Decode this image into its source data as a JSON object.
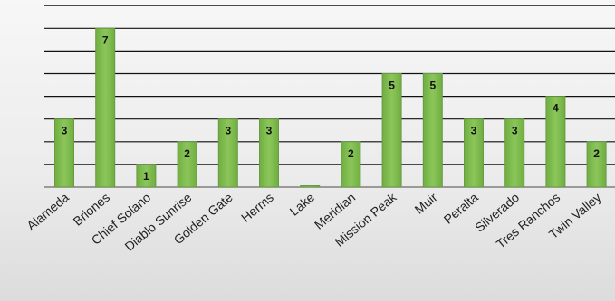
{
  "chart_data": {
    "type": "bar",
    "categories": [
      "Alameda",
      "Briones",
      "Chief Solano",
      "Diablo Sunrise",
      "Golden Gate",
      "Herms",
      "Lake",
      "Meridian",
      "Mission Peak",
      "Muir",
      "Peralta",
      "Silverado",
      "Tres Ranchos",
      "Twin Valley"
    ],
    "values": [
      3,
      7,
      1,
      2,
      3,
      3,
      0,
      2,
      5,
      5,
      3,
      3,
      4,
      2
    ],
    "ylim": [
      0,
      8
    ],
    "grid": true,
    "bar_color": "#7ab648",
    "bar_edge_color": "#5e8f38",
    "gridline_color": "#111111"
  }
}
